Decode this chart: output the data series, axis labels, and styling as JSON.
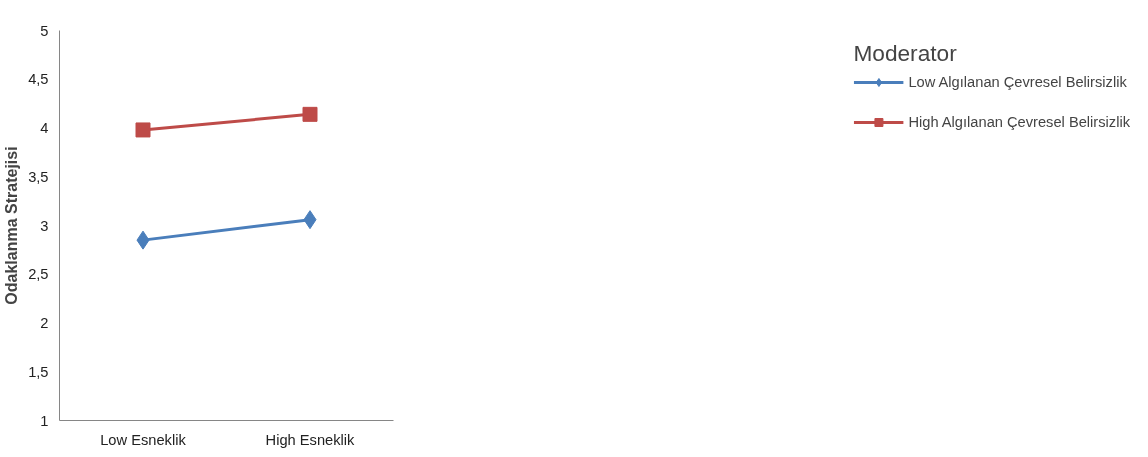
{
  "chart_data": {
    "type": "line",
    "ylabel": "Odaklanma Stratejisi",
    "legend_title": "Moderator",
    "categories": [
      "Low Esneklik",
      "High Esneklik"
    ],
    "series": [
      {
        "name": "Low Algılanan Çevresel Belirsizlik",
        "color": "#4a7ebb",
        "marker": "diamond",
        "values": [
          2.85,
          3.06
        ]
      },
      {
        "name": "High Algılanan Çevresel Belirsizlik",
        "color": "#be4b48",
        "marker": "square",
        "values": [
          3.98,
          4.14
        ]
      }
    ],
    "ylim": [
      1,
      5
    ],
    "yticks": [
      1,
      {
        "value": 1.5,
        "label": "1,5"
      },
      2,
      {
        "value": 2.5,
        "label": "2,5"
      },
      3,
      {
        "value": 3.5,
        "label": "3,5"
      },
      4,
      {
        "value": 4.5,
        "label": "4,5"
      },
      5
    ],
    "grid": false,
    "legend": "right",
    "line_style": "solid"
  }
}
